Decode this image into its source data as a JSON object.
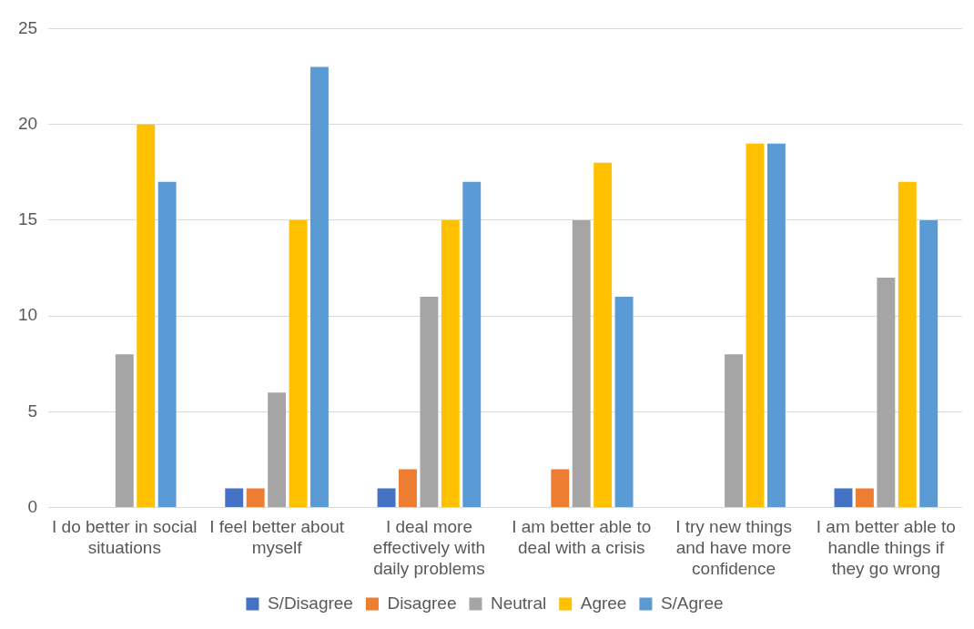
{
  "chart_data": {
    "type": "bar",
    "categories": [
      "I do better in social situations",
      "I feel better about myself",
      "I deal more effectively with daily problems",
      "I am better able to deal with a crisis",
      "I try new things and have more confidence",
      "I am better able to handle things if they go wrong"
    ],
    "series": [
      {
        "name": "S/Disagree",
        "color": "#4472c4",
        "values": [
          0,
          1,
          1,
          0,
          0,
          1
        ]
      },
      {
        "name": "Disagree",
        "color": "#ed7d31",
        "values": [
          0,
          1,
          2,
          2,
          0,
          1
        ]
      },
      {
        "name": "Neutral",
        "color": "#a5a5a5",
        "values": [
          8,
          6,
          11,
          15,
          8,
          12
        ]
      },
      {
        "name": "Agree",
        "color": "#ffc000",
        "values": [
          20,
          15,
          15,
          18,
          19,
          17
        ]
      },
      {
        "name": "S/Agree",
        "color": "#5b9bd5",
        "values": [
          17,
          23,
          17,
          11,
          19,
          15
        ]
      }
    ],
    "ylim": [
      0,
      25
    ],
    "yticks": [
      0,
      5,
      10,
      15,
      20,
      25
    ],
    "grid": "y",
    "legend": "bottom"
  }
}
